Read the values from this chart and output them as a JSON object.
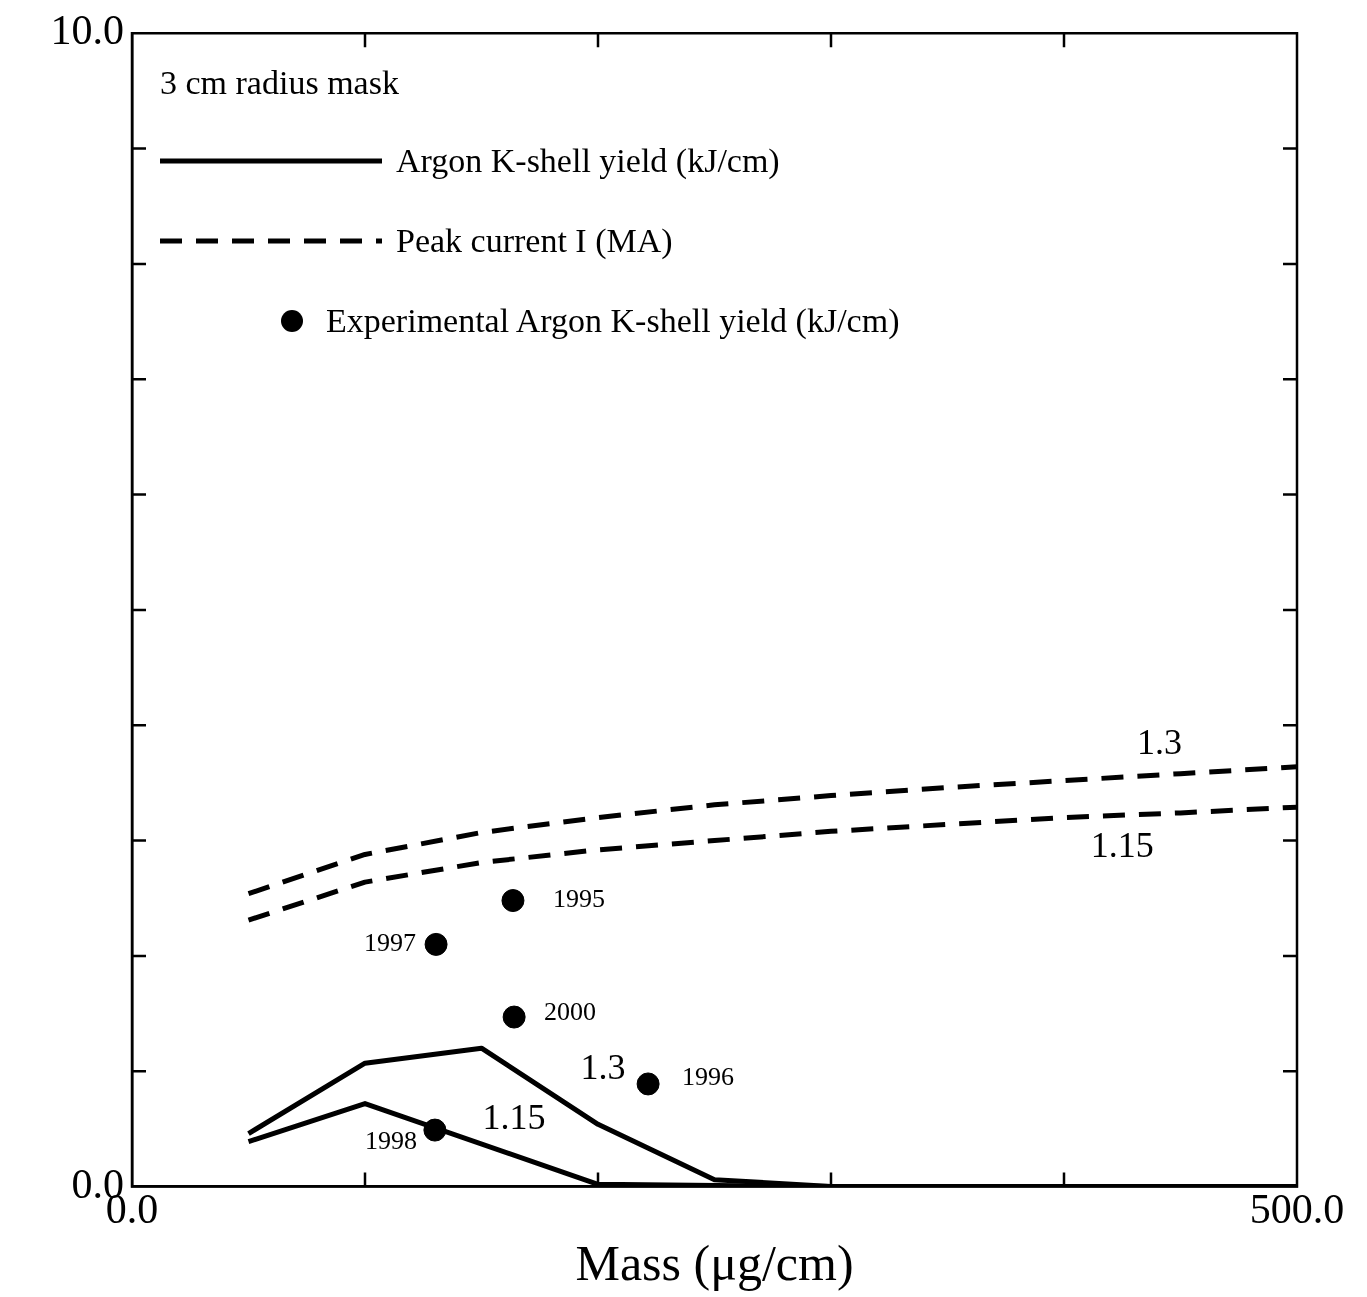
{
  "chart_data": {
    "type": "line",
    "xlabel": "Mass (μg/cm)",
    "legend_title": "3 cm radius mask",
    "legend": "top left",
    "xlim": [
      0,
      500
    ],
    "ylim": [
      0,
      10
    ],
    "xticks": [
      {
        "value": 0,
        "label": "0.0"
      },
      {
        "value": 100,
        "label": null
      },
      {
        "value": 200,
        "label": null
      },
      {
        "value": 300,
        "label": null
      },
      {
        "value": 400,
        "label": null
      },
      {
        "value": 500,
        "label": "500.0"
      }
    ],
    "yticks": [
      {
        "value": 0,
        "label": "0.0"
      },
      {
        "value": 1,
        "label": null
      },
      {
        "value": 2,
        "label": null
      },
      {
        "value": 3,
        "label": null
      },
      {
        "value": 4,
        "label": null
      },
      {
        "value": 5,
        "label": null
      },
      {
        "value": 6,
        "label": null
      },
      {
        "value": 7,
        "label": null
      },
      {
        "value": 8,
        "label": null
      },
      {
        "value": 9,
        "label": null
      },
      {
        "value": 10,
        "label": "10.0"
      }
    ],
    "series": [
      {
        "name": "Argon K-shell yield (kJ/cm)",
        "type": "line",
        "color": "#000000",
        "line_style": "solid",
        "marker": "none",
        "x": [
          50,
          100,
          150,
          200,
          250,
          300,
          500
        ],
        "values": [
          0.46,
          1.07,
          1.2,
          0.54,
          0.06,
          0,
          0
        ]
      },
      {
        "type": "line",
        "color": "#000000",
        "line_style": "solid",
        "marker": "none",
        "x": [
          50,
          100,
          200,
          300,
          500
        ],
        "values": [
          0.39,
          0.72,
          0.02,
          0,
          0
        ]
      },
      {
        "name": "Peak current I (MA)",
        "type": "line",
        "color": "#000000",
        "line_style": "dashed",
        "marker": "none",
        "x": [
          50,
          100,
          150,
          200,
          250,
          300,
          350,
          400,
          450,
          500
        ],
        "values": [
          2.54,
          2.88,
          3.07,
          3.2,
          3.31,
          3.39,
          3.46,
          3.52,
          3.58,
          3.64
        ]
      },
      {
        "type": "line",
        "color": "#000000",
        "line_style": "dashed",
        "marker": "none",
        "x": [
          50,
          100,
          150,
          200,
          250,
          300,
          350,
          400,
          450,
          500
        ],
        "values": [
          2.31,
          2.64,
          2.81,
          2.92,
          3.0,
          3.08,
          3.14,
          3.2,
          3.24,
          3.29
        ]
      },
      {
        "name": "Experimental Argon K-shell yield (kJ/cm)",
        "type": "scatter",
        "color": "#000000",
        "marker": "circle",
        "x": [
          163.5,
          130.5,
          164,
          221.5,
          130
        ],
        "values": [
          2.48,
          2.1,
          1.47,
          0.89,
          0.49
        ]
      }
    ],
    "annotations": [
      {
        "text": "1.3",
        "x": 441,
        "y": 3.57
      },
      {
        "text": "1.15",
        "x": 425,
        "y": 3.22
      },
      {
        "text": "1.3",
        "x": 185,
        "y": 0.74
      },
      {
        "text": "1.15",
        "x": 164,
        "y": 0.27
      },
      {
        "text": "1995",
        "x": 163.5,
        "y": 2.48
      },
      {
        "text": "1997",
        "x": 130.5,
        "y": 2.1
      },
      {
        "text": "2000",
        "x": 164,
        "y": 1.47
      },
      {
        "text": "1996",
        "x": 221.5,
        "y": 0.89
      },
      {
        "text": "1998",
        "x": 130,
        "y": 0.49
      }
    ]
  }
}
